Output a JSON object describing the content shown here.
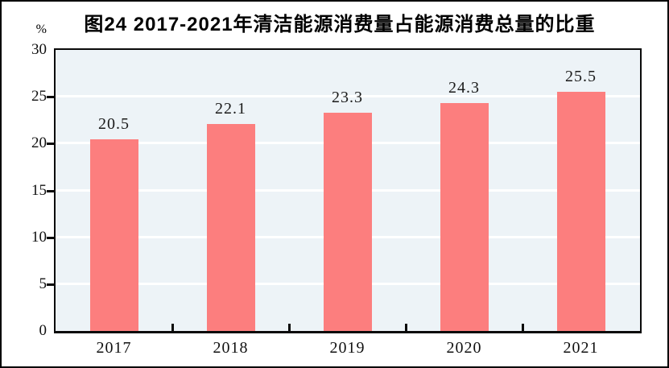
{
  "chart_data": {
    "type": "bar",
    "title": "图24  2017-2021年清洁能源消费量占能源消费总量的比重",
    "unit": "%",
    "categories": [
      "2017",
      "2018",
      "2019",
      "2020",
      "2021"
    ],
    "values": [
      20.5,
      22.1,
      23.3,
      24.3,
      25.5
    ],
    "value_labels": [
      "20.5",
      "22.1",
      "23.3",
      "24.3",
      "25.5"
    ],
    "xlabel": "",
    "ylabel": "%",
    "ylim": [
      0,
      30
    ],
    "yticks": [
      0,
      5,
      10,
      15,
      20,
      25,
      30
    ],
    "grid": "horizontal white gridlines at ytick positions",
    "legend": "none",
    "colors": {
      "bar_fill": "#FC7E7E",
      "plot_background": "#EDF3F7",
      "gridline": "#FFFFFF",
      "axis": "#0A0A0A",
      "text": "#111111",
      "page_background": "#FFFFFF"
    }
  }
}
